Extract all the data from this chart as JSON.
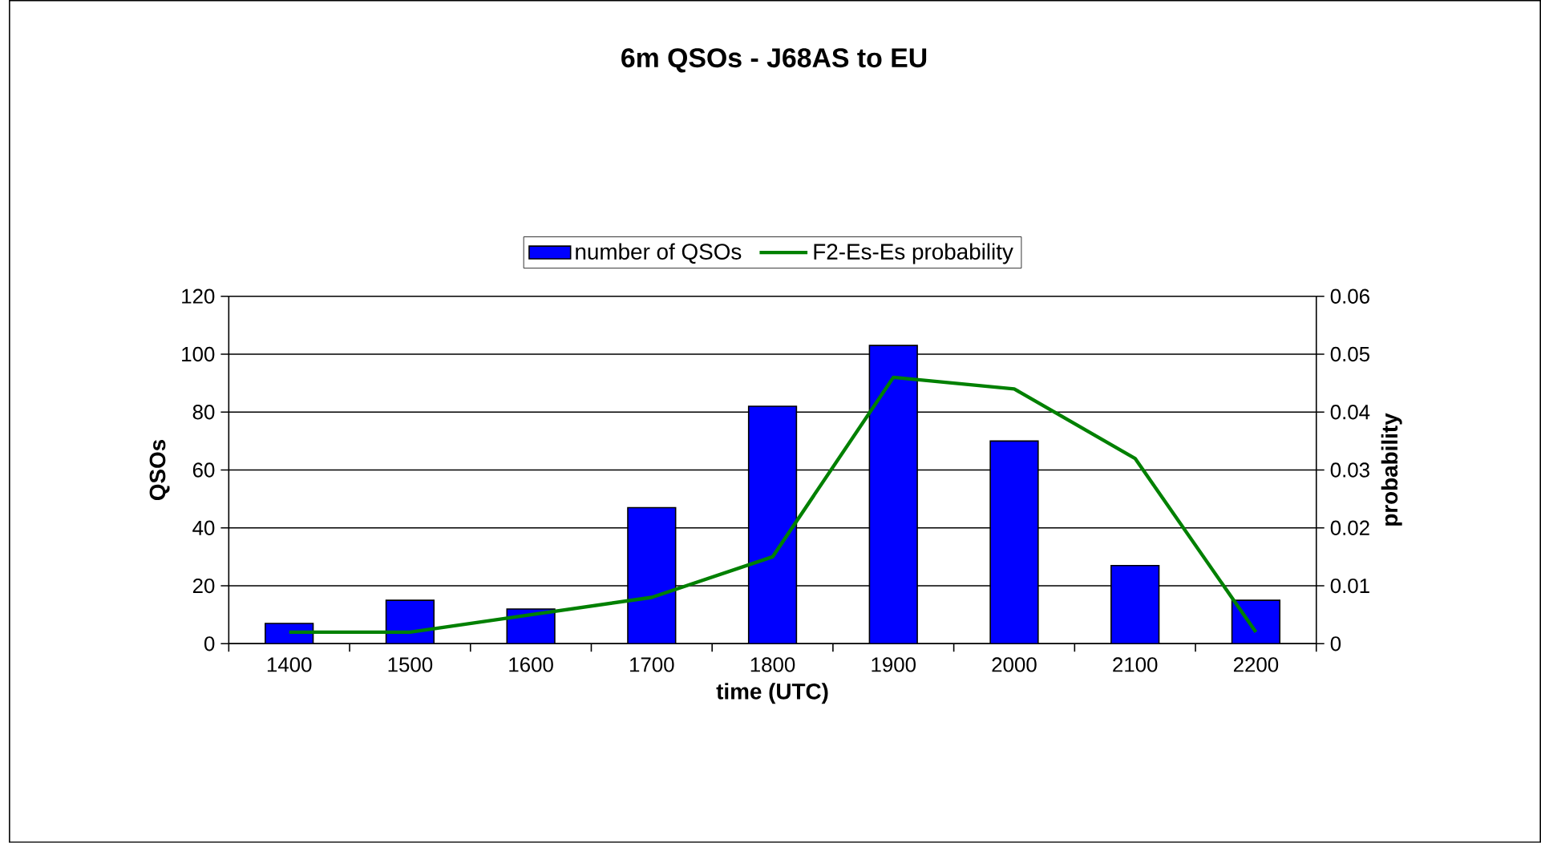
{
  "chart_data": {
    "type": "bar",
    "title": "6m QSOs - J68AS to EU",
    "xlabel": "time (UTC)",
    "ylabel": "QSOs",
    "y2label": "probability",
    "categories": [
      "1400",
      "1500",
      "1600",
      "1700",
      "1800",
      "1900",
      "2000",
      "2100",
      "2200"
    ],
    "series": [
      {
        "name": "number of QSOs",
        "color": "#0000ff",
        "values": [
          7,
          15,
          12,
          47,
          82,
          103,
          70,
          27,
          15
        ]
      },
      {
        "name": "F2-Es-Es probability",
        "type": "line",
        "axis": "y2",
        "color": "#008000",
        "values": [
          0.002,
          0.002,
          0.005,
          0.008,
          0.015,
          0.046,
          0.044,
          0.032,
          0.002
        ]
      }
    ],
    "ylim": [
      0,
      120
    ],
    "yticks": [
      0,
      20,
      40,
      60,
      80,
      100,
      120
    ],
    "y2lim": [
      0,
      0.06
    ],
    "y2ticks": [
      0,
      0.01,
      0.02,
      0.03,
      0.04,
      0.05,
      0.06
    ],
    "grid": "y",
    "legend": "top",
    "marker": "none"
  }
}
